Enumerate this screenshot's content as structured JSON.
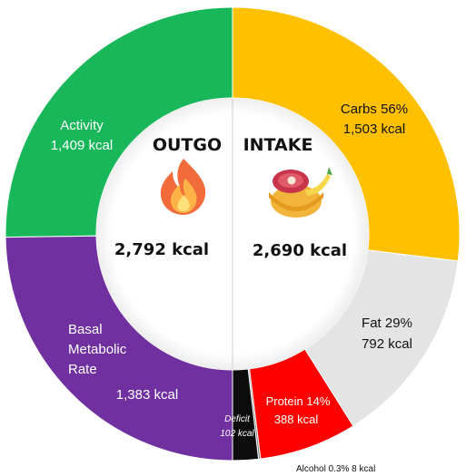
{
  "chart_data": {
    "type": "pie",
    "subtype": "donut",
    "outgo": {
      "header": "OUTGO",
      "total": "2,792 kcal",
      "icon": "flame-icon",
      "slices": [
        {
          "name": "Activity",
          "value": 1409,
          "value_label": "1,409 kcal",
          "color": "#18B85A"
        },
        {
          "name": "Basal Metabolic Rate",
          "label_lines": [
            "Basal",
            "Metabolic",
            "Rate"
          ],
          "value": 1383,
          "value_label": "1,383 kcal",
          "color": "#7030A0"
        }
      ]
    },
    "intake": {
      "header": "INTAKE",
      "total": "2,690 kcal",
      "icon": "food-bowl-icon",
      "slices": [
        {
          "name": "Carbs",
          "percent": "56%",
          "value": 1503,
          "value_label": "1,503 kcal",
          "color": "#FFC000"
        },
        {
          "name": "Fat",
          "percent": "29%",
          "value": 792,
          "value_label": "792 kcal",
          "color": "#E4E4E4"
        },
        {
          "name": "Protein",
          "percent": "14%",
          "value": 388,
          "value_label": "388 kcal",
          "color": "#FF0000"
        },
        {
          "name": "Alcohol",
          "percent": "0.3%",
          "value": 8,
          "value_label": "8 kcal",
          "color": "#7F7F7F"
        }
      ],
      "deficit": {
        "name": "Deficit",
        "value": 102,
        "value_label": "102 kcal",
        "color": "#0D0D0D"
      }
    }
  }
}
